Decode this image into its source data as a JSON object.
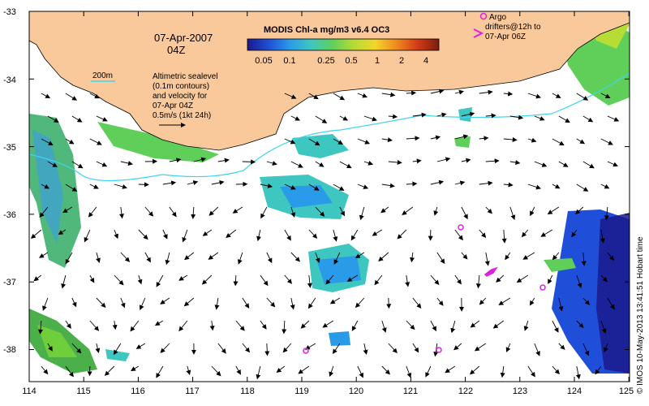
{
  "header": {
    "date": "07-Apr-2007",
    "time": "04Z"
  },
  "colorbar": {
    "title": "MODIS Chl-a mg/m3 v6.4 OC3",
    "tick_labels": [
      "0.05",
      "0.1",
      "0.25",
      "0.5",
      "1",
      "2",
      "4"
    ],
    "stops": [
      "#1b1a8c",
      "#1f4fd8",
      "#2a9be8",
      "#3ec7c0",
      "#5fcf5a",
      "#b6dc35",
      "#f2d52a",
      "#f08a1f",
      "#d23a17",
      "#7a1d0c"
    ]
  },
  "depth_legend": {
    "label": "200m",
    "color": "#40d4ee"
  },
  "info_text": [
    "Altimetric sealevel",
    "(0.1m contours)",
    "and velocity for",
    "07-Apr 04Z",
    "0.5m/s (1kt 24h)"
  ],
  "argo_legend": {
    "lines": [
      "Argo",
      "drifters@12h to",
      "07-Apr 06Z"
    ],
    "color": "#e020e0"
  },
  "side_caption": "© IMOS 10-May-2013 13:41:51 Hobart time",
  "axes": {
    "x_ticks": [
      "114",
      "115",
      "116",
      "117",
      "118",
      "119",
      "120",
      "121",
      "122",
      "123",
      "124",
      "125"
    ],
    "y_ticks": [
      "-33",
      "-34",
      "-35",
      "-36",
      "-37",
      "-38"
    ]
  },
  "colors": {
    "land": "#f9c89b",
    "coast": "#000000",
    "arrow": "#000000"
  }
}
